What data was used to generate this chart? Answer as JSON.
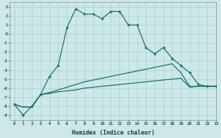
{
  "xlabel": "Humidex (Indice chaleur)",
  "background_color": "#cce8e8",
  "grid_color": "#aacccc",
  "line_color": "#1a6b6b",
  "x_main": [
    0,
    1,
    2,
    3,
    4,
    5,
    6,
    7,
    8,
    9,
    10,
    11,
    12,
    13,
    14,
    15,
    16,
    17,
    18,
    19,
    20,
    21,
    22,
    23
  ],
  "y_main": [
    -7.8,
    -9.0,
    -8.0,
    -6.7,
    -4.7,
    -3.5,
    0.7,
    2.8,
    2.2,
    2.2,
    1.7,
    2.5,
    2.5,
    1.0,
    1.0,
    -1.5,
    -2.2,
    -1.5,
    -2.7,
    -3.5,
    -4.3,
    -5.6,
    -5.8,
    -5.8
  ],
  "x_low": [
    0,
    1,
    2,
    3,
    4,
    5,
    6,
    7,
    8,
    9,
    10,
    11,
    12,
    13,
    14,
    15,
    16,
    17,
    18,
    19,
    20,
    21,
    22,
    23
  ],
  "y_low": [
    -7.8,
    -8.1,
    -8.1,
    -6.7,
    -6.6,
    -6.4,
    -6.3,
    -6.2,
    -6.0,
    -5.9,
    -5.8,
    -5.7,
    -5.6,
    -5.5,
    -5.4,
    -5.3,
    -5.2,
    -5.1,
    -5.0,
    -4.9,
    -5.9,
    -5.8,
    -5.8,
    -5.8
  ],
  "x_high": [
    0,
    1,
    2,
    3,
    4,
    5,
    6,
    7,
    8,
    9,
    10,
    11,
    12,
    13,
    14,
    15,
    16,
    17,
    18,
    19,
    20,
    21,
    22,
    23
  ],
  "y_high": [
    -7.8,
    -8.1,
    -8.1,
    -6.7,
    -6.5,
    -6.2,
    -5.9,
    -5.6,
    -5.3,
    -5.1,
    -4.9,
    -4.7,
    -4.5,
    -4.3,
    -4.1,
    -3.9,
    -3.7,
    -3.5,
    -3.3,
    -4.3,
    -5.8,
    -5.8,
    -5.8,
    -5.8
  ],
  "ylim": [
    -9.5,
    3.5
  ],
  "xlim": [
    -0.5,
    23
  ],
  "yticks": [
    3,
    2,
    1,
    0,
    -1,
    -2,
    -3,
    -4,
    -5,
    -6,
    -7,
    -8,
    -9
  ],
  "xticks": [
    0,
    1,
    2,
    3,
    4,
    5,
    6,
    7,
    8,
    9,
    10,
    11,
    12,
    13,
    14,
    15,
    16,
    17,
    18,
    19,
    20,
    21,
    22,
    23
  ]
}
